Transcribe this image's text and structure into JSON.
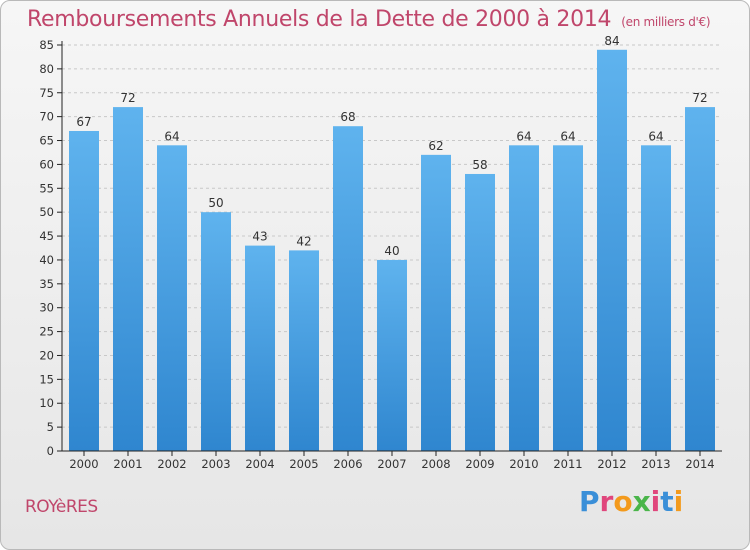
{
  "chart_data": {
    "type": "bar",
    "title": "Remboursements Annuels de la Dette de 2000 à 2014",
    "unit_note": "(en milliers d'€)",
    "categories": [
      "2000",
      "2001",
      "2002",
      "2003",
      "2004",
      "2005",
      "2006",
      "2007",
      "2008",
      "2009",
      "2010",
      "2011",
      "2012",
      "2013",
      "2014"
    ],
    "values": [
      67,
      72,
      64,
      50,
      43,
      42,
      68,
      40,
      62,
      58,
      64,
      64,
      84,
      64,
      72
    ],
    "ylim": [
      0,
      85
    ],
    "ytick_step": 5,
    "xlabel": "",
    "ylabel": "",
    "grid": "horizontal-dashed",
    "bar_color": "#4a9fe0"
  },
  "footer": {
    "commune": "ROYèRES",
    "brand": "Proxiti",
    "brand_colors": [
      "#3a8fd8",
      "#e0467c",
      "#f39a1c",
      "#4ab54a",
      "#e0467c",
      "#3a8fd8",
      "#f39a1c"
    ]
  },
  "colors": {
    "title": "#c0466b",
    "axis": "#222222",
    "grid": "#c8c8c8"
  }
}
